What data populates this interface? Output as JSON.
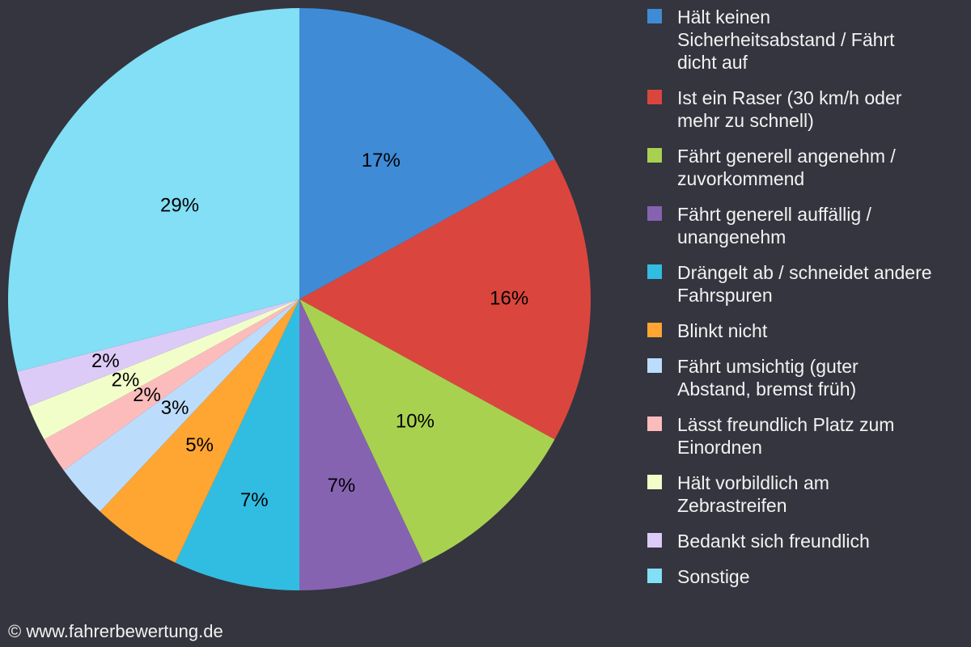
{
  "chart_data": {
    "type": "pie",
    "start_angle_deg": 0,
    "direction": "clockwise",
    "legend_position": "right",
    "slices": [
      {
        "label": "Hält keinen\nSicherheitsabstand / Fährt\ndicht auf",
        "value": 17,
        "display": "17%",
        "color": "#3f8bd6"
      },
      {
        "label": "Ist ein Raser (30 km/h oder\nmehr zu schnell)",
        "value": 16,
        "display": "16%",
        "color": "#da463d"
      },
      {
        "label": "Fährt generell angenehm /\nzuvorkommend",
        "value": 10,
        "display": "10%",
        "color": "#a9d150"
      },
      {
        "label": "Fährt generell auffällig /\nunangenehm",
        "value": 7,
        "display": "7%",
        "color": "#8663b1"
      },
      {
        "label": "Drängelt ab / schneidet andere\nFahrspuren",
        "value": 7,
        "display": "7%",
        "color": "#31bde1"
      },
      {
        "label": "Blinkt nicht",
        "value": 5,
        "display": "5%",
        "color": "#fea532"
      },
      {
        "label": "Fährt umsichtig (guter\nAbstand, bremst früh)",
        "value": 3,
        "display": "3%",
        "color": "#bcdcfb"
      },
      {
        "label": "Lässt freundlich Platz zum\nEinordnen",
        "value": 2,
        "display": "2%",
        "color": "#fdbcbc"
      },
      {
        "label": "Hält vorbildlich am\nZebrastreifen",
        "value": 2,
        "display": "2%",
        "color": "#f2feca"
      },
      {
        "label": "Bedankt sich freundlich",
        "value": 2,
        "display": "2%",
        "color": "#dccbf6"
      },
      {
        "label": "Sonstige",
        "value": 29,
        "display": "29%",
        "color": "#82dff5"
      }
    ]
  },
  "footer": {
    "copyright": "© www.fahrerbewertung.de"
  }
}
